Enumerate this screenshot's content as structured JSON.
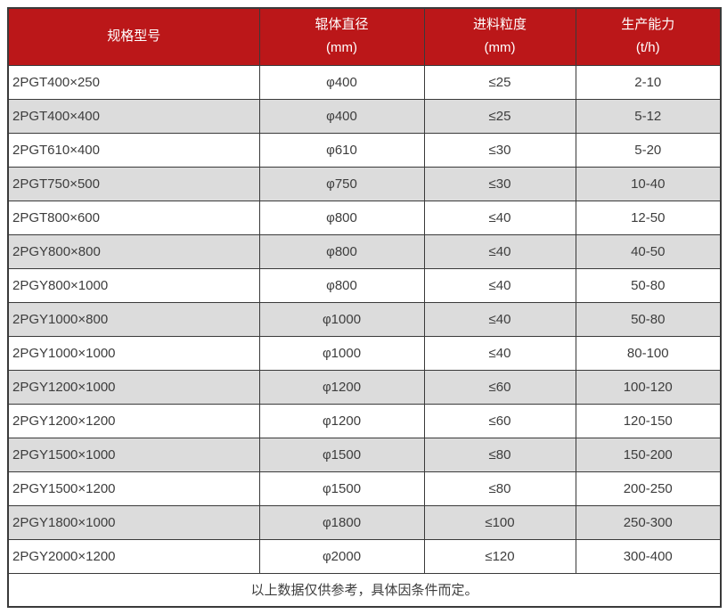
{
  "table": {
    "header": {
      "columns": [
        {
          "label": "规格型号",
          "unit": ""
        },
        {
          "label": "辊体直径",
          "unit": "(mm)"
        },
        {
          "label": "进料粒度",
          "unit": "(mm)"
        },
        {
          "label": "生产能力",
          "unit": "(t/h)"
        }
      ]
    },
    "rows": [
      [
        "2PGT400×250",
        "φ400",
        "≤25",
        "2-10"
      ],
      [
        "2PGT400×400",
        "φ400",
        "≤25",
        "5-12"
      ],
      [
        "2PGT610×400",
        "φ610",
        "≤30",
        "5-20"
      ],
      [
        "2PGT750×500",
        "φ750",
        "≤30",
        "10-40"
      ],
      [
        "2PGT800×600",
        "φ800",
        "≤40",
        "12-50"
      ],
      [
        "2PGY800×800",
        "φ800",
        "≤40",
        "40-50"
      ],
      [
        "2PGY800×1000",
        "φ800",
        "≤40",
        "50-80"
      ],
      [
        "2PGY1000×800",
        "φ1000",
        "≤40",
        "50-80"
      ],
      [
        "2PGY1000×1000",
        "φ1000",
        "≤40",
        "80-100"
      ],
      [
        "2PGY1200×1000",
        "φ1200",
        "≤60",
        "100-120"
      ],
      [
        "2PGY1200×1200",
        "φ1200",
        "≤60",
        "120-150"
      ],
      [
        "2PGY1500×1000",
        "φ1500",
        "≤80",
        "150-200"
      ],
      [
        "2PGY1500×1200",
        "φ1500",
        "≤80",
        "200-250"
      ],
      [
        "2PGY1800×1000",
        "φ1800",
        "≤100",
        "250-300"
      ],
      [
        "2PGY2000×1200",
        "φ2000",
        "≤120",
        "300-400"
      ]
    ],
    "footnote": "以上数据仅供参考，具体因条件而定。",
    "colors": {
      "header_bg": "#BB1719",
      "header_text": "#FFFFFF",
      "row_bg": "#FFFFFF",
      "row_alt_bg": "#DCDCDC",
      "border": "#3A3A3A",
      "cell_text": "#3D3D3D"
    }
  }
}
